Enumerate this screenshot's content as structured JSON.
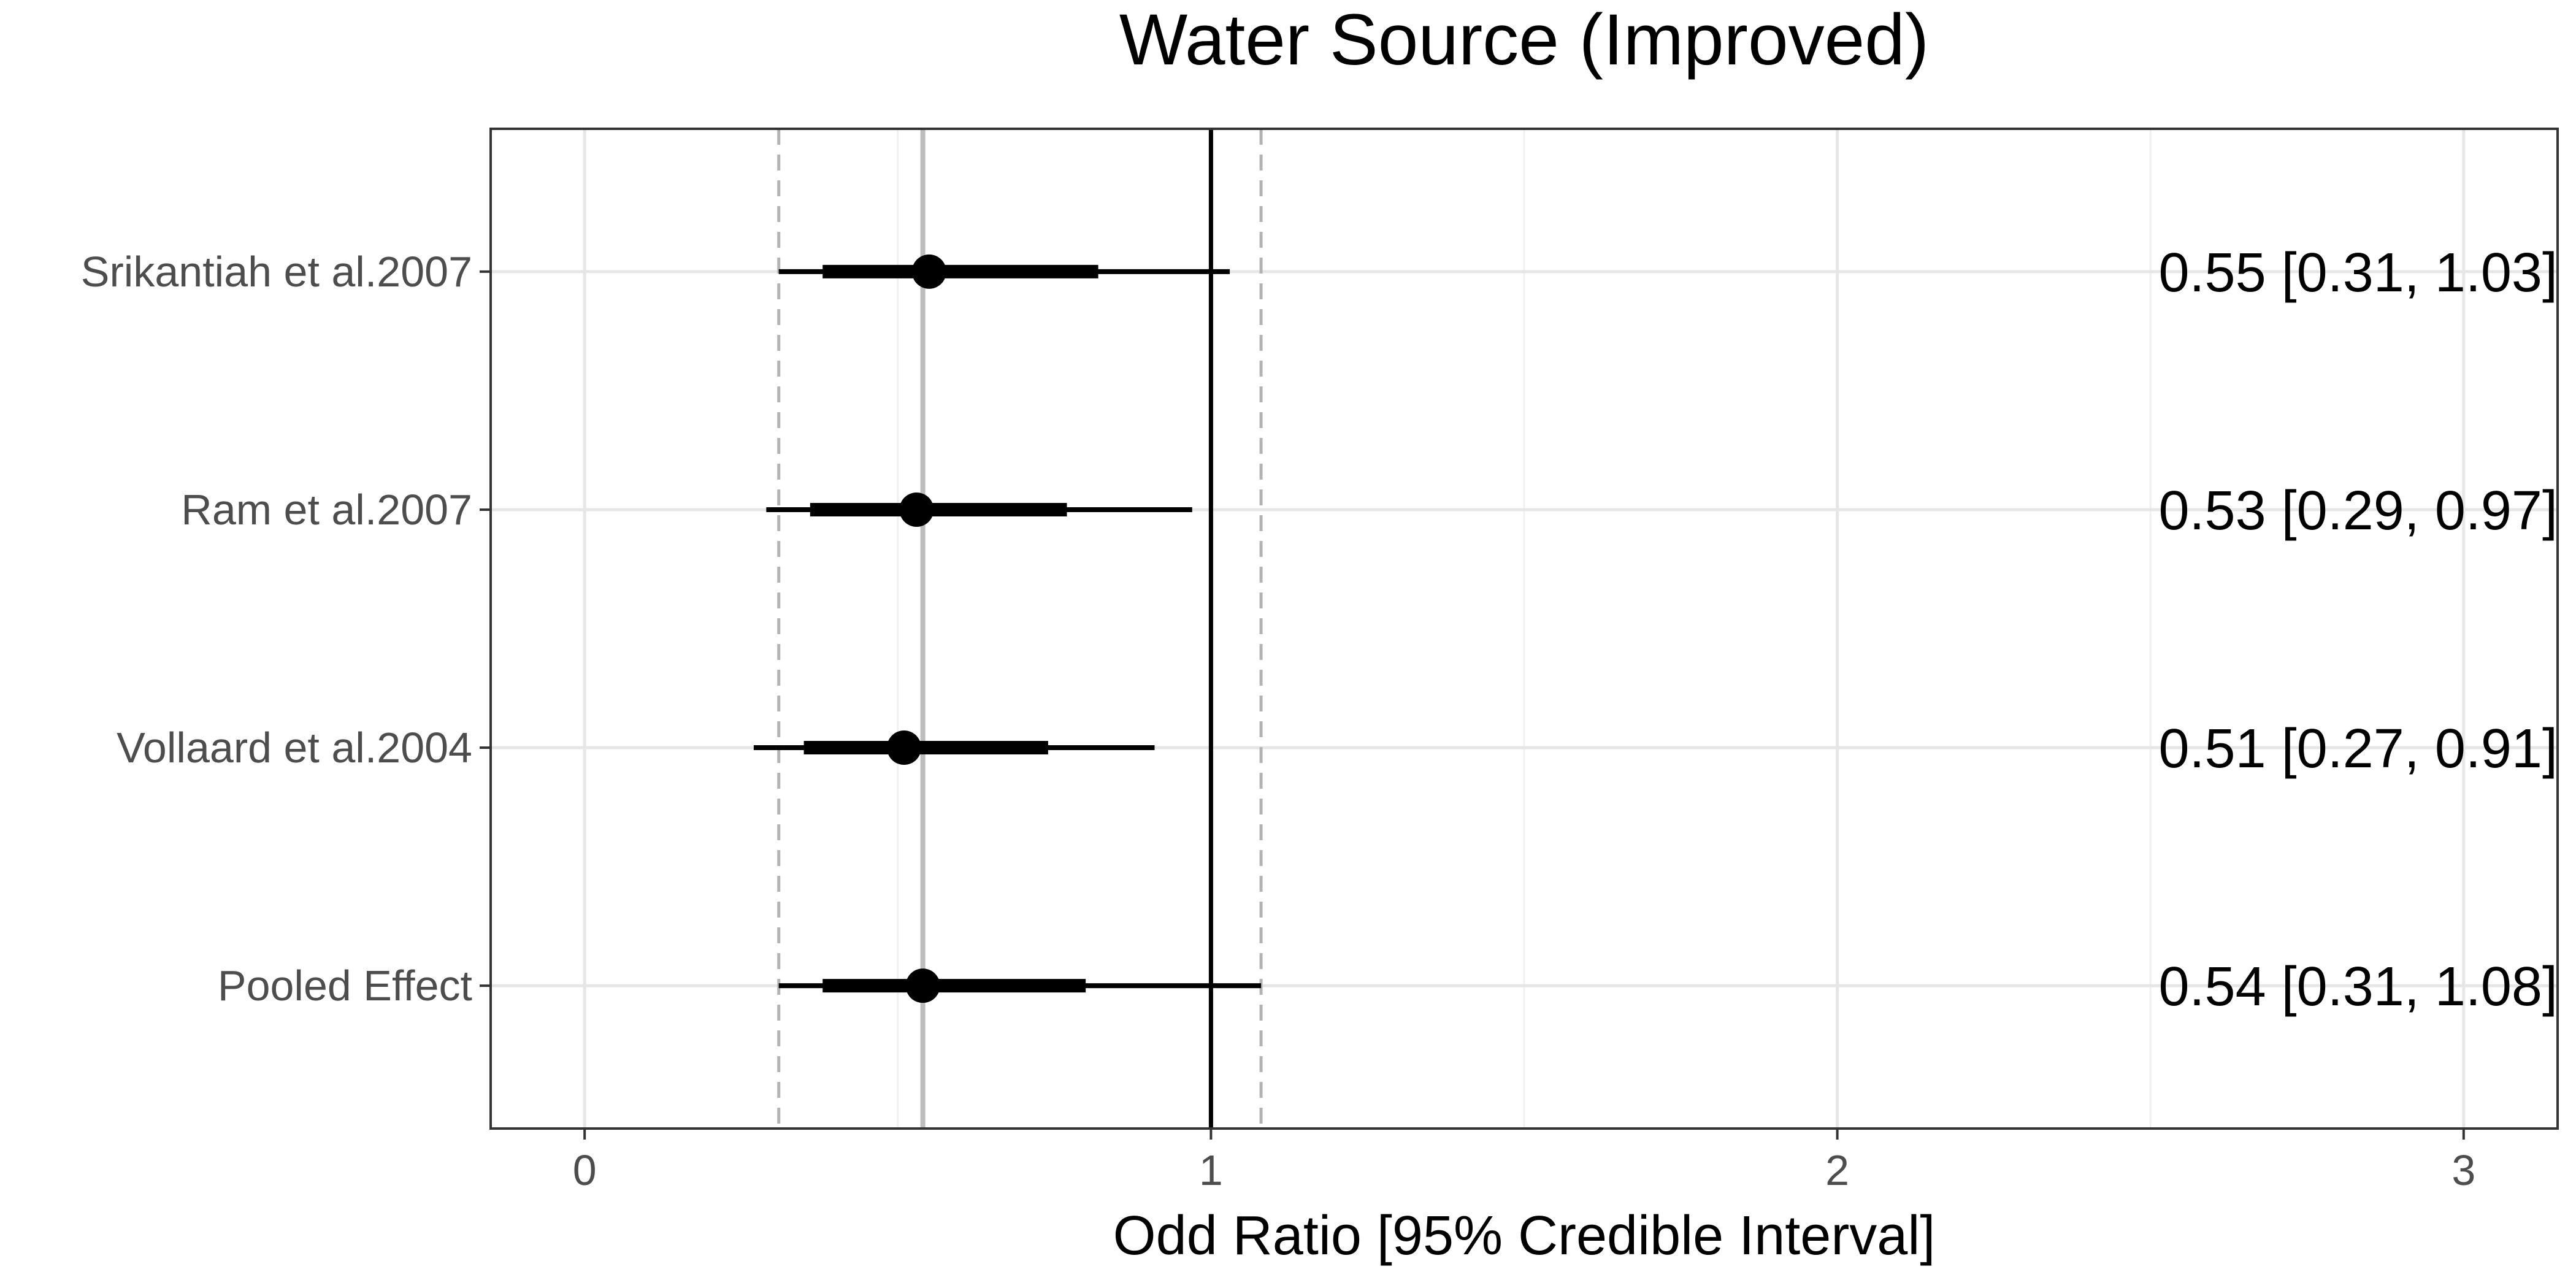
{
  "chart_data": {
    "type": "forest",
    "title": "Water Source (Improved)",
    "xlabel": "Odd Ratio [95% Credible Interval]",
    "xlim": [
      -0.15,
      3.15
    ],
    "xticks": [
      0,
      1,
      2,
      3
    ],
    "xtick_labels": [
      "0",
      "1",
      "2",
      "3"
    ],
    "reference_line": 1,
    "pooled_estimate_line": 0.54,
    "pooled_interval_lines": [
      0.31,
      1.08
    ],
    "grid": true,
    "rows": [
      {
        "label": "Srikantiah et al.2007",
        "estimate": 0.55,
        "lower": 0.31,
        "upper": 1.03,
        "inner_lower": 0.38,
        "inner_upper": 0.82,
        "annotation": "0.55 [0.31, 1.03]"
      },
      {
        "label": "Ram et al.2007",
        "estimate": 0.53,
        "lower": 0.29,
        "upper": 0.97,
        "inner_lower": 0.36,
        "inner_upper": 0.77,
        "annotation": "0.53 [0.29, 0.97]"
      },
      {
        "label": "Vollaard et al.2004",
        "estimate": 0.51,
        "lower": 0.27,
        "upper": 0.91,
        "inner_lower": 0.35,
        "inner_upper": 0.74,
        "annotation": "0.51 [0.27, 0.91]"
      },
      {
        "label": "Pooled Effect",
        "estimate": 0.54,
        "lower": 0.31,
        "upper": 1.08,
        "inner_lower": 0.38,
        "inner_upper": 0.8,
        "annotation": "0.54 [0.31, 1.08]"
      }
    ]
  }
}
